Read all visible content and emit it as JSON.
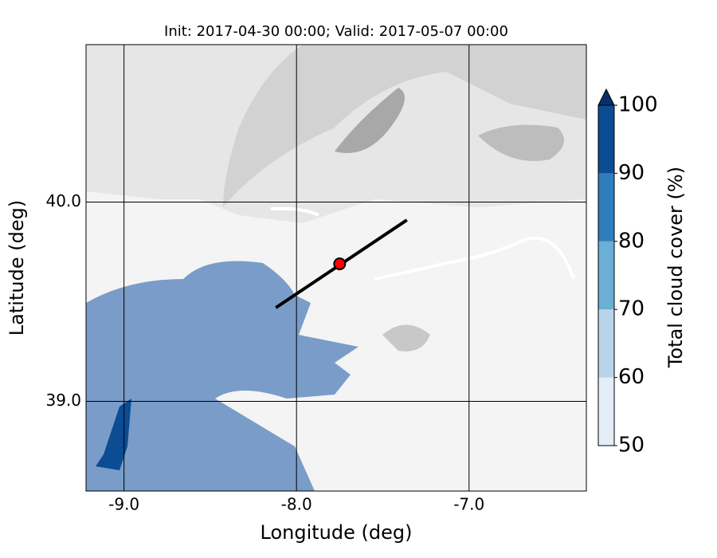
{
  "chart_data": {
    "type": "map",
    "title": "Init: 2017-04-30 00:00; Valid: 2017-05-07 00:00",
    "xlabel": "Longitude (deg)",
    "ylabel": "Latitude (deg)",
    "xlim": [
      -9.22,
      -6.32
    ],
    "ylim": [
      38.55,
      40.79
    ],
    "xticks": [
      {
        "value": -9.0,
        "label": "-9.0"
      },
      {
        "value": -8.0,
        "label": "-8.0"
      },
      {
        "value": -7.0,
        "label": "-7.0"
      }
    ],
    "yticks": [
      {
        "value": 39.0,
        "label": "39.0"
      },
      {
        "value": 40.0,
        "label": "40.0"
      }
    ],
    "grid": true,
    "transect": {
      "lon": [
        -8.12,
        -7.36
      ],
      "lat": [
        39.47,
        39.91
      ],
      "color": "#000000"
    },
    "point": {
      "lon": -7.75,
      "lat": 39.69,
      "color": "#ff0000"
    },
    "colorbar": {
      "label": "Total cloud cover (%)",
      "lim": [
        50,
        100
      ],
      "ticks": [
        50,
        60,
        70,
        80,
        90,
        100
      ],
      "colors": [
        "#e3eef8",
        "#b7d4ea",
        "#6baed6",
        "#2e7ebc",
        "#0b4c93"
      ],
      "extend_color": "#08306b"
    }
  }
}
